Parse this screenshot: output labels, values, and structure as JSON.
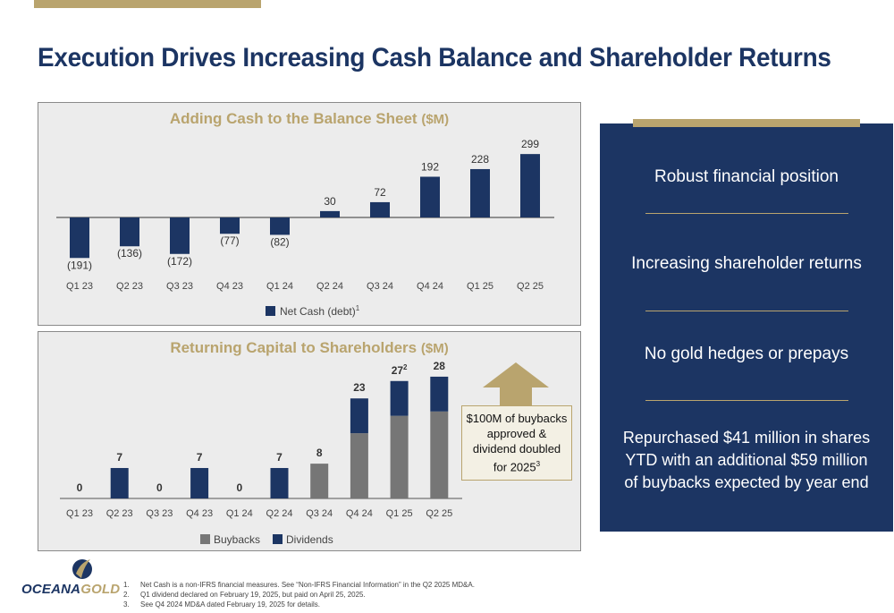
{
  "slide": {
    "title": "Execution Drives Increasing Cash Balance and Shareholder Returns"
  },
  "chart_data": [
    {
      "id": "net_cash",
      "type": "bar",
      "title": "Adding Cash to the Balance Sheet",
      "title_unit": "($M)",
      "categories": [
        "Q1 23",
        "Q2 23",
        "Q3 23",
        "Q4 23",
        "Q1 24",
        "Q2 24",
        "Q3 24",
        "Q4 24",
        "Q1 25",
        "Q2 25"
      ],
      "series": [
        {
          "name": "Net Cash (debt)",
          "name_sup": "1",
          "color": "#1c3563",
          "values": [
            -191,
            -136,
            -172,
            -77,
            -82,
            30,
            72,
            192,
            228,
            299
          ],
          "labels": [
            "(191)",
            "(136)",
            "(172)",
            "(77)",
            "(82)",
            "30",
            "72",
            "192",
            "228",
            "299"
          ]
        }
      ],
      "ylim": [
        -210,
        330
      ],
      "grid": false,
      "legend_position": "bottom"
    },
    {
      "id": "shareholder_returns",
      "type": "bar",
      "stacked": true,
      "title": "Returning Capital to Shareholders",
      "title_unit": "($M)",
      "categories": [
        "Q1 23",
        "Q2 23",
        "Q3 23",
        "Q4 23",
        "Q1 24",
        "Q2 24",
        "Q3 24",
        "Q4 24",
        "Q1 25",
        "Q2 25"
      ],
      "series": [
        {
          "name": "Buybacks",
          "color": "#767676",
          "values": [
            0,
            0,
            0,
            0,
            0,
            0,
            8,
            15,
            19,
            20
          ]
        },
        {
          "name": "Dividends",
          "color": "#1c3563",
          "values": [
            0,
            7,
            0,
            7,
            0,
            7,
            0,
            8,
            8,
            8
          ]
        }
      ],
      "totals": [
        "0",
        "7",
        "0",
        "7",
        "0",
        "7",
        "8",
        "23",
        "27",
        "28"
      ],
      "total_sups": [
        "",
        "",
        "",
        "",
        "",
        "",
        "",
        "",
        "2",
        ""
      ],
      "ylim": [
        0,
        32
      ],
      "grid": false,
      "legend_position": "bottom"
    }
  ],
  "callout": {
    "text": "$100M of buybacks approved & dividend doubled for 2025",
    "sup": "3"
  },
  "highlights": [
    "Robust financial position",
    "Increasing shareholder returns",
    "No gold hedges or prepays",
    "Repurchased $41 million in shares YTD with an additional $59 million of buybacks expected by year end"
  ],
  "logo": {
    "part1": "OCEANA",
    "part2": "GOLD"
  },
  "footnotes": [
    {
      "num": "1.",
      "text": "Net Cash is a non-IFRS financial measures. See “Non-IFRS Financial Information” in the Q2 2025 MD&A."
    },
    {
      "num": "2.",
      "text": "Q1 dividend declared on February 19, 2025, but paid on April 25, 2025."
    },
    {
      "num": "3.",
      "text": "See Q4 2024 MD&A dated February 19, 2025 for details."
    }
  ],
  "colors": {
    "navy": "#1c3563",
    "gold": "#b9a46e",
    "gray": "#767676",
    "panel_bg": "#ececec"
  }
}
